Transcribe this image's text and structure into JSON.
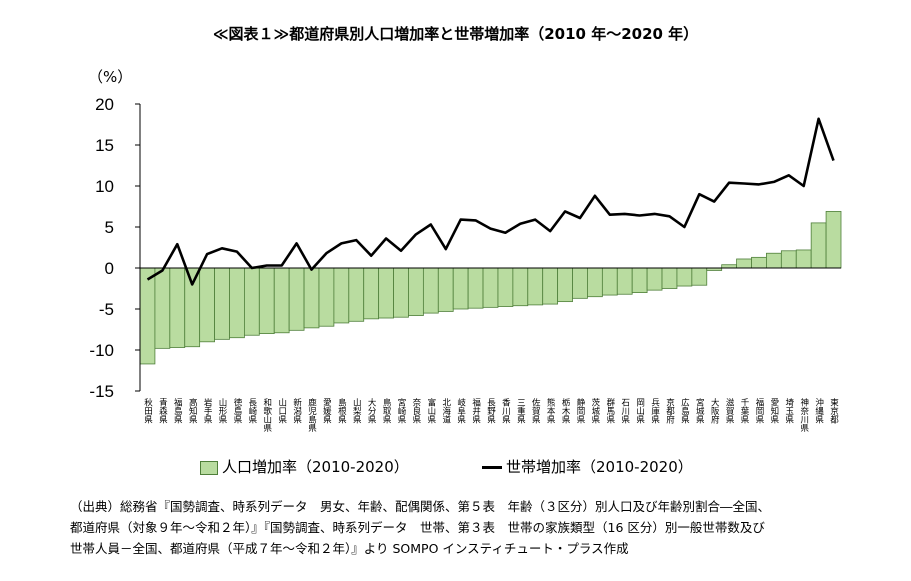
{
  "chart_data": {
    "type": "bar",
    "title": "≪図表１≫都道府県別人口増加率と世帯増加率（2010 年～2020 年）",
    "ylabel": "（%）",
    "ylim": [
      -15,
      20
    ],
    "yticks": [
      -15,
      -10,
      -5,
      0,
      5,
      10,
      15,
      20
    ],
    "categories": [
      "秋田県",
      "青森県",
      "福島県",
      "高知県",
      "岩手県",
      "山形県",
      "徳島県",
      "長崎県",
      "和歌山県",
      "山口県",
      "新潟県",
      "鹿児島県",
      "愛媛県",
      "島根県",
      "山梨県",
      "大分県",
      "鳥取県",
      "宮崎県",
      "奈良県",
      "富山県",
      "北海道",
      "岐阜県",
      "福井県",
      "長野県",
      "香川県",
      "三重県",
      "佐賀県",
      "熊本県",
      "栃木県",
      "静岡県",
      "茨城県",
      "群馬県",
      "石川県",
      "岡山県",
      "兵庫県",
      "京都府",
      "広島県",
      "宮城県",
      "大阪府",
      "滋賀県",
      "千葉県",
      "福岡県",
      "愛知県",
      "埼玉県",
      "神奈川県",
      "沖縄県",
      "東京都"
    ],
    "series": [
      {
        "name": "人口増加率（2010-2020）",
        "type": "bar",
        "color": "#b9dca0",
        "values": [
          -11.7,
          -9.8,
          -9.7,
          -9.6,
          -9.0,
          -8.7,
          -8.5,
          -8.2,
          -8.0,
          -7.9,
          -7.6,
          -7.3,
          -7.1,
          -6.7,
          -6.5,
          -6.2,
          -6.1,
          -6.0,
          -5.8,
          -5.5,
          -5.3,
          -5.0,
          -4.9,
          -4.8,
          -4.7,
          -4.6,
          -4.5,
          -4.4,
          -4.1,
          -3.7,
          -3.5,
          -3.3,
          -3.2,
          -3.0,
          -2.7,
          -2.5,
          -2.2,
          -2.1,
          -0.3,
          0.4,
          1.1,
          1.3,
          1.8,
          2.1,
          2.2,
          5.5,
          6.9
        ]
      },
      {
        "name": "世帯増加率（2010-2020）",
        "type": "line",
        "color": "#000000",
        "values": [
          -1.4,
          -0.3,
          2.9,
          -2.0,
          1.7,
          2.4,
          2.0,
          0.0,
          0.3,
          0.3,
          3.0,
          -0.2,
          1.8,
          3.0,
          3.4,
          1.5,
          3.6,
          2.1,
          4.1,
          5.3,
          2.3,
          5.9,
          5.8,
          4.8,
          4.3,
          5.4,
          5.9,
          4.5,
          6.9,
          6.1,
          8.8,
          6.5,
          6.6,
          6.4,
          6.6,
          6.3,
          5.0,
          9.0,
          8.1,
          10.4,
          10.3,
          10.2,
          10.5,
          11.3,
          10.0,
          18.2,
          13.1
        ]
      }
    ],
    "legend": "bottom"
  },
  "legend": {
    "bar_label": "人口増加率（2010-2020）",
    "line_label": "世帯増加率（2010-2020）"
  },
  "source": {
    "line1": "（出典）総務省『国勢調査、時系列データ　男女、年齢、配偶関係、第５表　年齢（３区分）別人口及び年齢別割合―全国、",
    "line2": "都道府県（対象９年～令和２年）』『国勢調査、時系列データ　世帯、第３表　世帯の家族類型（16 区分）別一般世帯数及び",
    "line3": "世帯人員－全国、都道府県（平成７年～令和２年）』より SOMPO インスティチュート・プラス作成"
  }
}
